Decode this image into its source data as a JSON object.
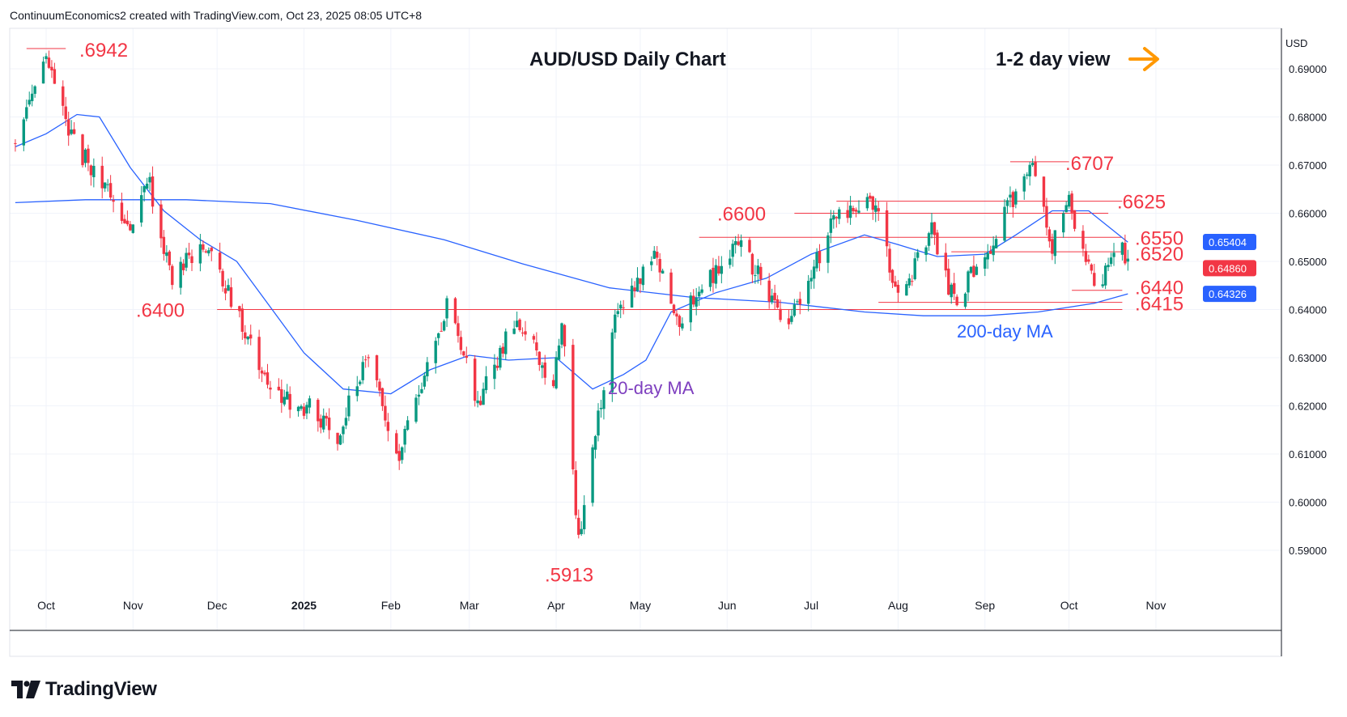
{
  "header": {
    "credit": "ContinuumEconomics2 created with TradingView.com, Oct 23, 2025 08:05 UTC+8"
  },
  "brand": {
    "name": "TradingView"
  },
  "colors": {
    "up": "#089981",
    "down": "#f23645",
    "ma20": "#2962ff",
    "ma200": "#2962ff",
    "level": "#f23645",
    "arrow": "#ff9800",
    "ma20_label": "#7e3fbf",
    "ma200_label": "#2962ff"
  },
  "chart_data": {
    "type": "candlestick",
    "title": "AUD/USD Daily Chart",
    "view_label": "1-2 day view",
    "currency": "USD",
    "y_ticks": [
      "0.69000",
      "0.68000",
      "0.67000",
      "0.66000",
      "0.65000",
      "0.64000",
      "0.63000",
      "0.62000",
      "0.61000",
      "0.60000",
      "0.59000"
    ],
    "y_tick_values": [
      0.69,
      0.68,
      0.67,
      0.66,
      0.65,
      0.64,
      0.63,
      0.62,
      0.61,
      0.6,
      0.59
    ],
    "x_ticks": [
      {
        "label": "Oct",
        "bold": false,
        "date": "2024-10-01"
      },
      {
        "label": "Nov",
        "bold": false,
        "date": "2024-11-01"
      },
      {
        "label": "Dec",
        "bold": false,
        "date": "2024-12-01"
      },
      {
        "label": "2025",
        "bold": true,
        "date": "2025-01-01"
      },
      {
        "label": "Feb",
        "bold": false,
        "date": "2025-02-01"
      },
      {
        "label": "Mar",
        "bold": false,
        "date": "2025-03-01"
      },
      {
        "label": "Apr",
        "bold": false,
        "date": "2025-04-01"
      },
      {
        "label": "May",
        "bold": false,
        "date": "2025-05-01"
      },
      {
        "label": "Jun",
        "bold": false,
        "date": "2025-06-01"
      },
      {
        "label": "Jul",
        "bold": false,
        "date": "2025-07-01"
      },
      {
        "label": "Aug",
        "bold": false,
        "date": "2025-08-01"
      },
      {
        "label": "Sep",
        "bold": false,
        "date": "2025-09-01"
      },
      {
        "label": "Oct",
        "bold": false,
        "date": "2025-10-01"
      },
      {
        "label": "Nov",
        "bold": false,
        "date": "2025-11-01"
      }
    ],
    "levels": [
      {
        "label": ".6942",
        "value": 0.6942,
        "from": "2024-09-24",
        "to": "2024-10-08"
      },
      {
        "label": ".6707",
        "value": 0.6707,
        "from": "2025-09-10",
        "to": "2025-10-01"
      },
      {
        "label": ".6625",
        "value": 0.6625,
        "from": "2025-07-10",
        "to": "2025-10-20"
      },
      {
        "label": ".6600",
        "value": 0.66,
        "from": "2025-06-25",
        "to": "2025-10-15"
      },
      {
        "label": ".6550",
        "value": 0.655,
        "from": "2025-05-22",
        "to": "2025-10-20"
      },
      {
        "label": ".6520",
        "value": 0.652,
        "from": "2025-08-20",
        "to": "2025-10-20"
      },
      {
        "label": ".6440",
        "value": 0.644,
        "from": "2025-10-02",
        "to": "2025-10-20"
      },
      {
        "label": ".6415",
        "value": 0.6415,
        "from": "2025-07-25",
        "to": "2025-10-20"
      },
      {
        "label": ".6400",
        "value": 0.64,
        "from": "2024-12-01",
        "to": "2025-10-20"
      },
      {
        "label": ".5913",
        "value": 0.5913,
        "from": null,
        "to": null
      }
    ],
    "price_badges": [
      {
        "label": "0.65404",
        "value": 0.65404,
        "color": "#2962ff"
      },
      {
        "label": "0.64860",
        "value": 0.6486,
        "color": "#f23645"
      },
      {
        "label": "0.64326",
        "value": 0.64326,
        "color": "#2962ff"
      }
    ],
    "ma_labels": {
      "ma20": "20-day MA",
      "ma200": "200-day MA"
    },
    "anchors": [
      {
        "date": "2024-09-20",
        "price": 0.675
      },
      {
        "date": "2024-10-01",
        "price": 0.6942
      },
      {
        "date": "2024-10-10",
        "price": 0.6755
      },
      {
        "date": "2024-10-31",
        "price": 0.6575
      },
      {
        "date": "2024-11-07",
        "price": 0.666
      },
      {
        "date": "2024-11-15",
        "price": 0.645
      },
      {
        "date": "2024-11-25",
        "price": 0.6545
      },
      {
        "date": "2024-12-05",
        "price": 0.6435
      },
      {
        "date": "2024-12-20",
        "price": 0.6225
      },
      {
        "date": "2025-01-03",
        "price": 0.6195
      },
      {
        "date": "2025-01-13",
        "price": 0.6135
      },
      {
        "date": "2025-01-24",
        "price": 0.6315
      },
      {
        "date": "2025-02-03",
        "price": 0.6089
      },
      {
        "date": "2025-02-21",
        "price": 0.6405
      },
      {
        "date": "2025-03-04",
        "price": 0.621
      },
      {
        "date": "2025-03-18",
        "price": 0.6385
      },
      {
        "date": "2025-03-31",
        "price": 0.624
      },
      {
        "date": "2025-04-03",
        "price": 0.6388
      },
      {
        "date": "2025-04-09",
        "price": 0.5913
      },
      {
        "date": "2025-04-22",
        "price": 0.639
      },
      {
        "date": "2025-05-07",
        "price": 0.6515
      },
      {
        "date": "2025-05-14",
        "price": 0.6375
      },
      {
        "date": "2025-06-05",
        "price": 0.6535
      },
      {
        "date": "2025-06-23",
        "price": 0.6372
      },
      {
        "date": "2025-07-10",
        "price": 0.6595
      },
      {
        "date": "2025-07-24",
        "price": 0.6625
      },
      {
        "date": "2025-08-01",
        "price": 0.6418
      },
      {
        "date": "2025-08-13",
        "price": 0.6565
      },
      {
        "date": "2025-08-21",
        "price": 0.6414
      },
      {
        "date": "2025-09-04",
        "price": 0.6545
      },
      {
        "date": "2025-09-17",
        "price": 0.6707
      },
      {
        "date": "2025-09-25",
        "price": 0.6535
      },
      {
        "date": "2025-10-01",
        "price": 0.662
      },
      {
        "date": "2025-10-10",
        "price": 0.6445
      },
      {
        "date": "2025-10-14",
        "price": 0.6475
      },
      {
        "date": "2025-10-20",
        "price": 0.652
      },
      {
        "date": "2025-10-22",
        "price": 0.6486
      }
    ],
    "ma20_path": [
      {
        "date": "2024-09-20",
        "price": 0.6738
      },
      {
        "date": "2024-10-01",
        "price": 0.6765
      },
      {
        "date": "2024-10-12",
        "price": 0.6805
      },
      {
        "date": "2024-10-20",
        "price": 0.68
      },
      {
        "date": "2024-10-31",
        "price": 0.6695
      },
      {
        "date": "2024-11-12",
        "price": 0.6605
      },
      {
        "date": "2024-11-25",
        "price": 0.6545
      },
      {
        "date": "2024-12-08",
        "price": 0.65
      },
      {
        "date": "2024-12-20",
        "price": 0.6405
      },
      {
        "date": "2025-01-01",
        "price": 0.631
      },
      {
        "date": "2025-01-15",
        "price": 0.6235
      },
      {
        "date": "2025-02-01",
        "price": 0.6225
      },
      {
        "date": "2025-02-15",
        "price": 0.6275
      },
      {
        "date": "2025-03-01",
        "price": 0.6305
      },
      {
        "date": "2025-03-15",
        "price": 0.6295
      },
      {
        "date": "2025-04-01",
        "price": 0.63
      },
      {
        "date": "2025-04-14",
        "price": 0.6235
      },
      {
        "date": "2025-04-25",
        "price": 0.6265
      },
      {
        "date": "2025-05-03",
        "price": 0.6295
      },
      {
        "date": "2025-05-12",
        "price": 0.6395
      },
      {
        "date": "2025-05-28",
        "price": 0.6435
      },
      {
        "date": "2025-06-15",
        "price": 0.6465
      },
      {
        "date": "2025-07-01",
        "price": 0.6515
      },
      {
        "date": "2025-07-20",
        "price": 0.6555
      },
      {
        "date": "2025-08-01",
        "price": 0.6535
      },
      {
        "date": "2025-08-15",
        "price": 0.651
      },
      {
        "date": "2025-09-01",
        "price": 0.6515
      },
      {
        "date": "2025-09-12",
        "price": 0.6555
      },
      {
        "date": "2025-09-25",
        "price": 0.6605
      },
      {
        "date": "2025-10-08",
        "price": 0.6605
      },
      {
        "date": "2025-10-22",
        "price": 0.654
      }
    ],
    "ma200_path": [
      {
        "date": "2024-09-20",
        "price": 0.6622
      },
      {
        "date": "2024-10-15",
        "price": 0.6628
      },
      {
        "date": "2024-11-20",
        "price": 0.6628
      },
      {
        "date": "2024-12-20",
        "price": 0.662
      },
      {
        "date": "2025-01-20",
        "price": 0.6585
      },
      {
        "date": "2025-02-20",
        "price": 0.6545
      },
      {
        "date": "2025-03-20",
        "price": 0.6495
      },
      {
        "date": "2025-04-20",
        "price": 0.6445
      },
      {
        "date": "2025-05-20",
        "price": 0.6425
      },
      {
        "date": "2025-06-20",
        "price": 0.6415
      },
      {
        "date": "2025-07-20",
        "price": 0.6395
      },
      {
        "date": "2025-08-10",
        "price": 0.6387
      },
      {
        "date": "2025-09-01",
        "price": 0.6387
      },
      {
        "date": "2025-09-20",
        "price": 0.6395
      },
      {
        "date": "2025-10-10",
        "price": 0.6413
      },
      {
        "date": "2025-10-22",
        "price": 0.64326
      }
    ]
  }
}
